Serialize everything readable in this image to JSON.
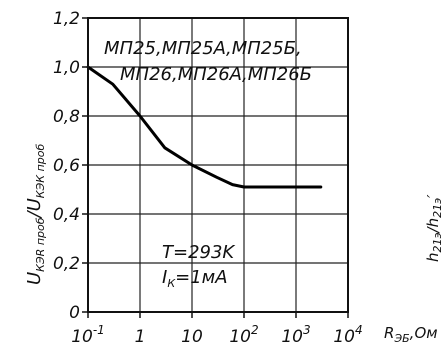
{
  "chart_data": {
    "type": "line",
    "x_scale": "log",
    "xlim": [
      0.1,
      10000
    ],
    "ylim": [
      0,
      1.2
    ],
    "grid": true,
    "x_ticks": [
      {
        "value": 0.1,
        "base": "10",
        "exp": "-1"
      },
      {
        "value": 1,
        "base": "1",
        "exp": ""
      },
      {
        "value": 10,
        "base": "10",
        "exp": ""
      },
      {
        "value": 100,
        "base": "10",
        "exp": "2"
      },
      {
        "value": 1000,
        "base": "10",
        "exp": "3"
      },
      {
        "value": 10000,
        "base": "10",
        "exp": "4"
      }
    ],
    "y_ticks": [
      {
        "value": 0,
        "label": "0"
      },
      {
        "value": 0.2,
        "label": "0,2"
      },
      {
        "value": 0.4,
        "label": "0,4"
      },
      {
        "value": 0.6,
        "label": "0,6"
      },
      {
        "value": 0.8,
        "label": "0,8"
      },
      {
        "value": 1.0,
        "label": "1,0"
      },
      {
        "value": 1.2,
        "label": "1,2"
      }
    ],
    "xlabel": {
      "main": "R",
      "sub": "ЭБ",
      "unit": ",Ом"
    },
    "ylabel": {
      "u1": "U",
      "s1": "КЭR проб",
      "slash": "/",
      "u2": "U",
      "s2": "КЭК проб"
    },
    "series": [
      {
        "x": [
          0.1,
          0.3,
          1,
          3,
          10,
          30,
          60,
          100,
          1000,
          3000
        ],
        "y": [
          1.0,
          0.93,
          0.8,
          0.67,
          0.6,
          0.55,
          0.52,
          0.51,
          0.51,
          0.51
        ]
      }
    ],
    "annotations": {
      "types_line1": "МП25,МП25А,МП25Б,",
      "types_line2": "МП26,МП26А,МП26Б",
      "temp": "T=293K",
      "current_main": "I",
      "current_sub": "К",
      "current_val": "=1мА"
    },
    "right_fragment": {
      "main": "h",
      "sub": "21э",
      "slash": "/h",
      "sub2": "21э",
      "prime": "′"
    }
  }
}
